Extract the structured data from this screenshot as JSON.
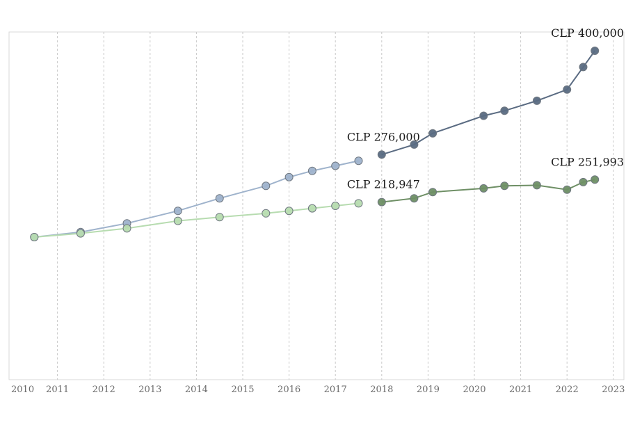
{
  "chart_data": {
    "type": "line",
    "title": "",
    "xlabel": "",
    "ylabel": "",
    "x_ticks": [
      "2010",
      "2011",
      "2012",
      "2013",
      "2014",
      "2015",
      "2016",
      "2017",
      "2018",
      "2019",
      "2020",
      "2021",
      "2022",
      "2023"
    ],
    "xlim": [
      2010,
      2023
    ],
    "ylim": [
      0,
      420000
    ],
    "grid": "vertical dashed",
    "legend": "none",
    "series": [
      {
        "key": "upper_early",
        "color": "#9fb3cc",
        "points": [
          [
            2010.5,
            166000
          ],
          [
            2011.5,
            170000
          ],
          [
            2012.5,
            177000
          ],
          [
            2013.6,
            187000
          ],
          [
            2014.5,
            197000
          ],
          [
            2015.5,
            207000
          ],
          [
            2016.0,
            214000
          ],
          [
            2016.5,
            219000
          ],
          [
            2017.0,
            223000
          ],
          [
            2017.5,
            227000
          ]
        ]
      },
      {
        "key": "upper_late",
        "color": "#5a6b82",
        "points": [
          [
            2018.0,
            232000
          ],
          [
            2018.7,
            240000
          ],
          [
            2019.1,
            249000
          ],
          [
            2020.2,
            263000
          ],
          [
            2020.65,
            267000
          ],
          [
            2021.35,
            275000
          ],
          [
            2022.0,
            284000
          ],
          [
            2022.35,
            302000
          ],
          [
            2022.6,
            315000
          ]
        ]
      },
      {
        "key": "lower_early",
        "color": "#b7dcb0",
        "points": [
          [
            2010.5,
            166000
          ],
          [
            2011.5,
            169000
          ],
          [
            2012.5,
            173000
          ],
          [
            2013.6,
            179000
          ],
          [
            2014.5,
            182000
          ],
          [
            2015.5,
            185000
          ],
          [
            2016.0,
            187000
          ],
          [
            2016.5,
            189000
          ],
          [
            2017.0,
            191000
          ],
          [
            2017.5,
            193000
          ]
        ]
      },
      {
        "key": "lower_late",
        "color": "#6e8f65",
        "points": [
          [
            2018.0,
            194000
          ],
          [
            2018.7,
            197000
          ],
          [
            2019.1,
            202000
          ],
          [
            2020.2,
            205000
          ],
          [
            2020.65,
            207000
          ],
          [
            2021.35,
            207500
          ],
          [
            2022.0,
            204000
          ],
          [
            2022.35,
            210000
          ],
          [
            2022.6,
            212000
          ]
        ]
      }
    ],
    "annotations": [
      {
        "text": "CLP 276,000",
        "x": 2018.0,
        "y": 232000
      },
      {
        "text": "CLP 400,000",
        "x": 2022.6,
        "y": 315000
      },
      {
        "text": "CLP 218,947",
        "x": 2018.0,
        "y": 194000
      },
      {
        "text": "CLP 251,993",
        "x": 2022.6,
        "y": 212000
      }
    ]
  }
}
